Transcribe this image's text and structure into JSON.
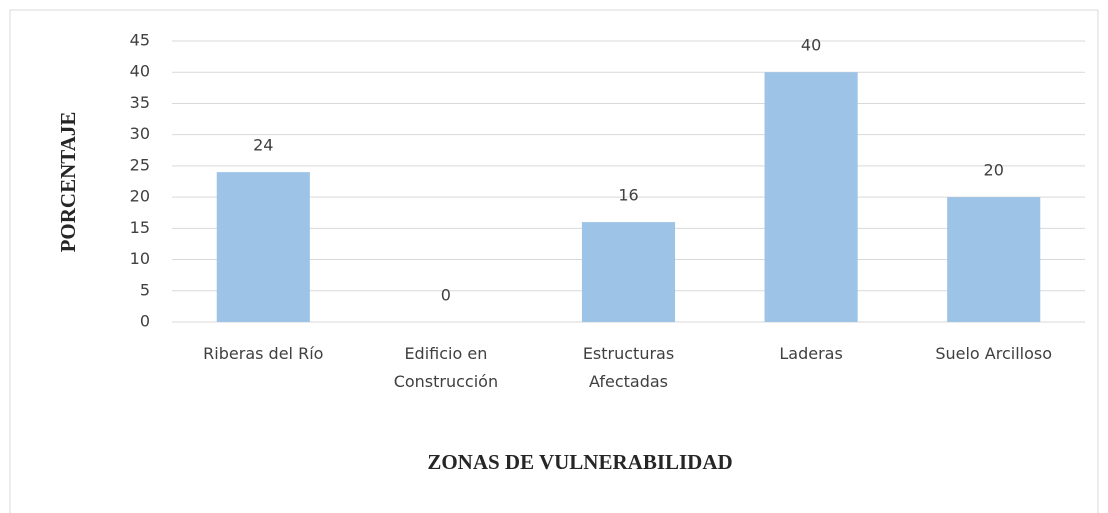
{
  "chart_data": {
    "type": "bar",
    "categories": [
      "Riberas del Río",
      "Edificio en Construcción",
      "Estructuras Afectadas",
      "Laderas",
      "Suelo Arcilloso"
    ],
    "values": [
      24,
      0,
      16,
      40,
      20
    ],
    "color": "#9dc3e6",
    "ylim": [
      0,
      45
    ],
    "yticks": [
      0,
      5,
      10,
      15,
      20,
      25,
      30,
      35,
      40,
      45
    ],
    "grid": true,
    "y_label": "PORCENTAJE",
    "x_label": "ZONAS DE VULNERABILIDAD"
  }
}
